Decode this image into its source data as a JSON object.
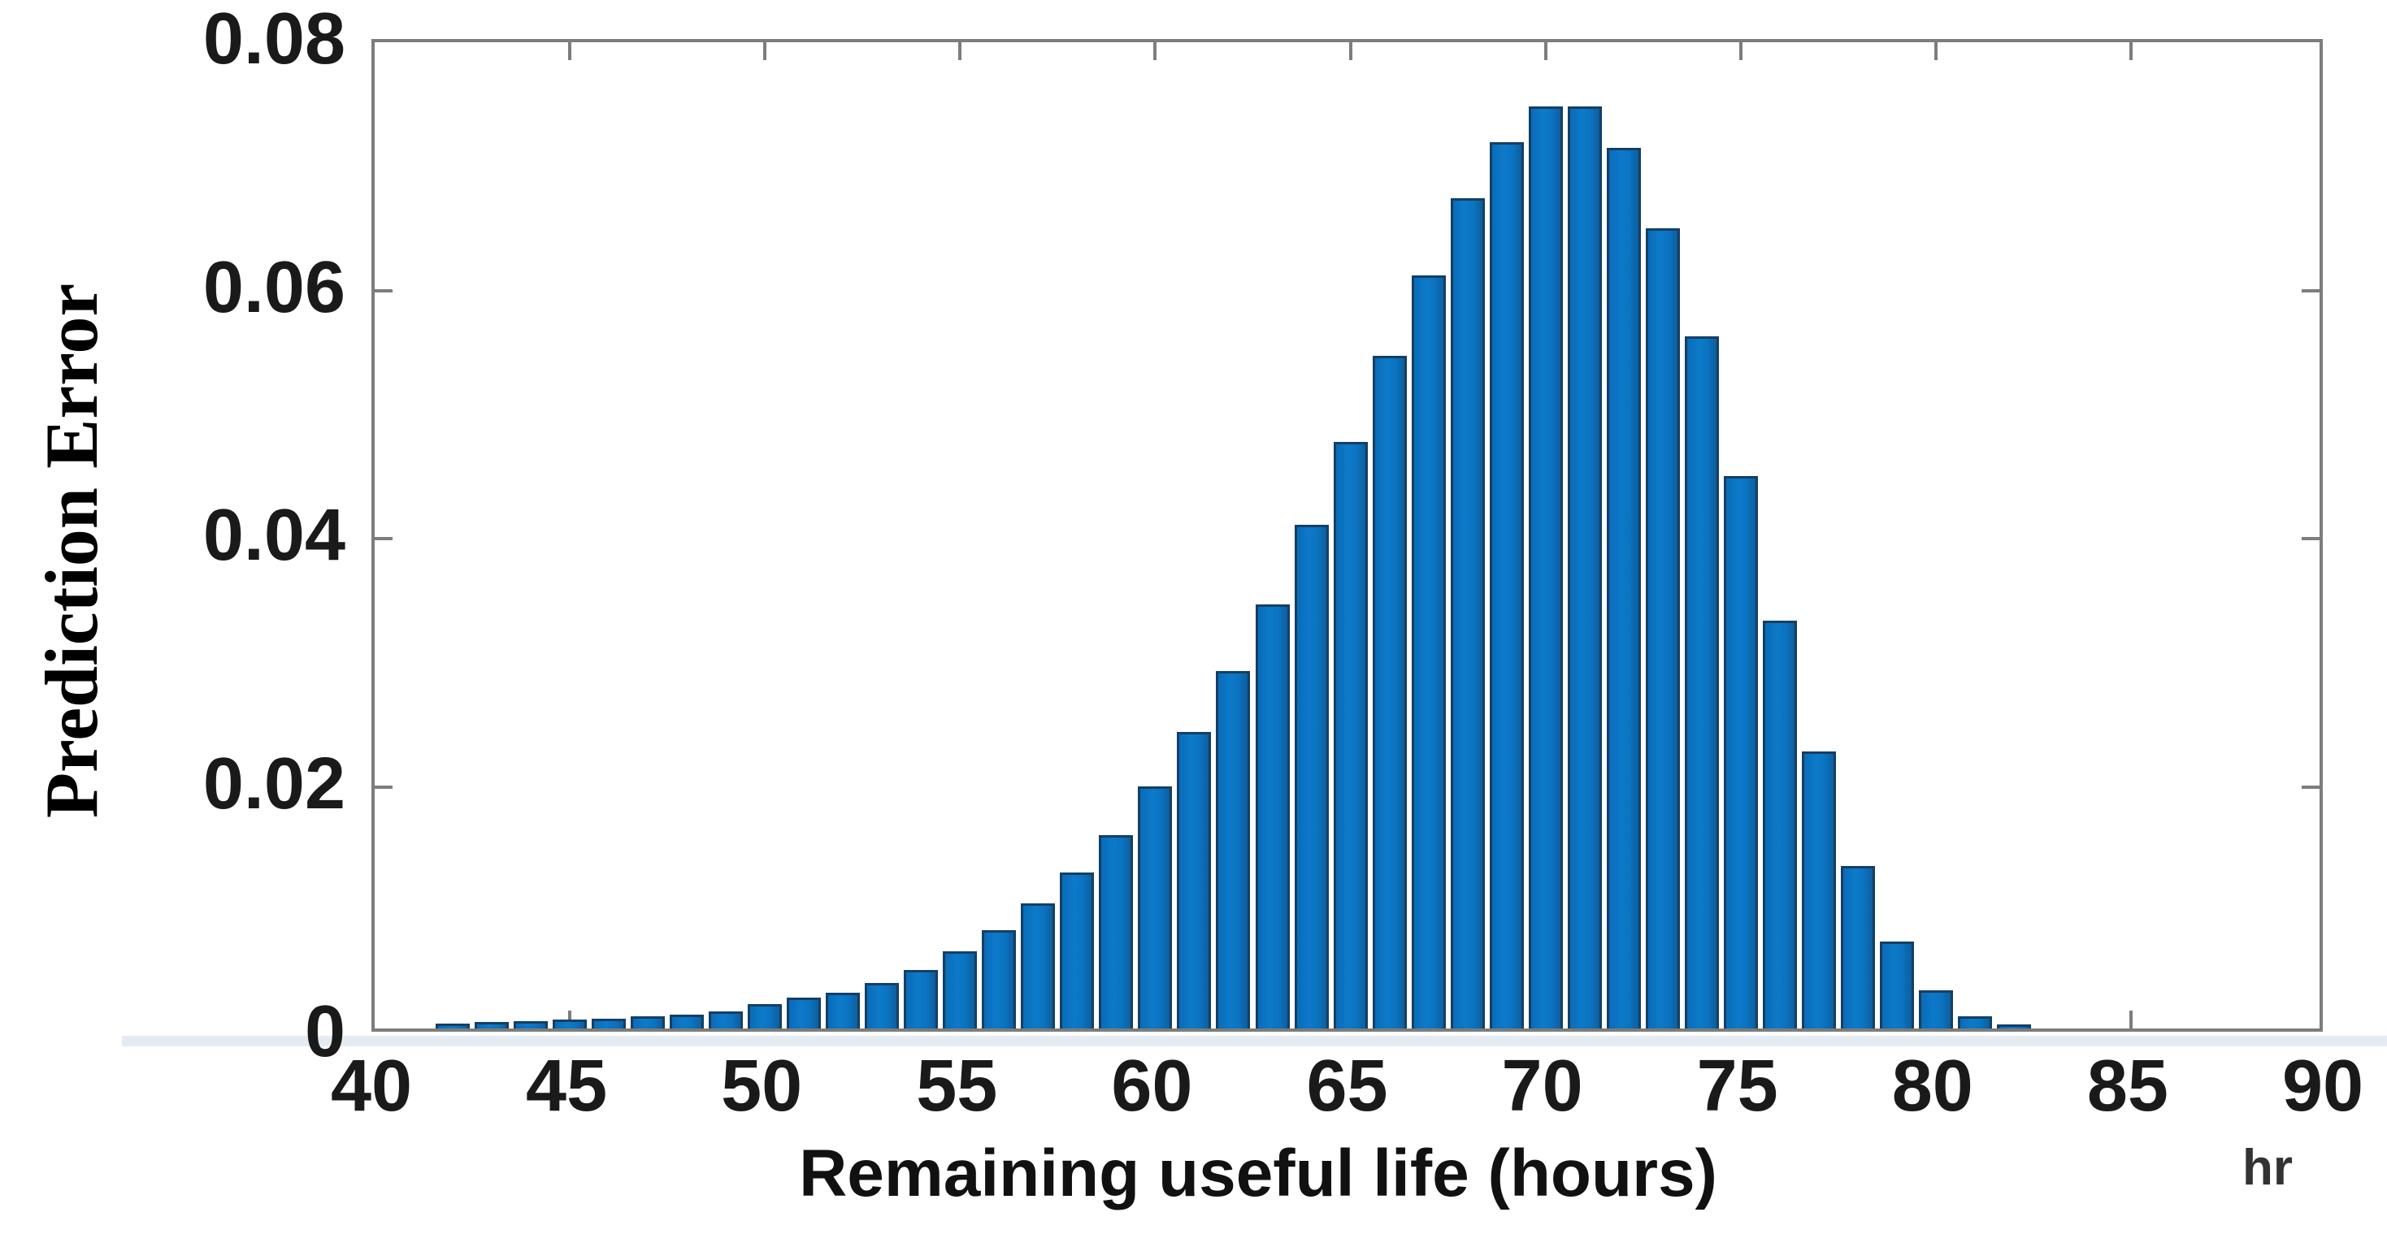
{
  "figure": {
    "colors": {
      "bar_fill": "#0b73c2",
      "bar_edge": "#143f66",
      "axis_box": "#7d7d7d",
      "tick_label": "#1a1a1a",
      "background": "#ffffff"
    }
  },
  "chart_data": {
    "type": "bar",
    "title": "",
    "xlabel": "Remaining useful life (hours)",
    "ylabel": "Prediction Error",
    "x_unit_label": "hr",
    "xlim": [
      40,
      90
    ],
    "ylim": [
      0,
      0.08
    ],
    "x_ticks": [
      40,
      45,
      50,
      55,
      60,
      65,
      70,
      75,
      80,
      85,
      90
    ],
    "y_ticks": [
      0,
      0.02,
      0.04,
      0.06,
      0.08
    ],
    "y_tick_labels": [
      "0",
      "0.02",
      "0.04",
      "0.06",
      "0.08"
    ],
    "grid": false,
    "legend": null,
    "bin_width": 1,
    "x": [
      42,
      43,
      44,
      45,
      46,
      47,
      48,
      49,
      50,
      51,
      52,
      53,
      54,
      55,
      56,
      57,
      58,
      59,
      60,
      61,
      62,
      63,
      64,
      65,
      66,
      67,
      68,
      69,
      70,
      71,
      72,
      73,
      74,
      75,
      76,
      77,
      78,
      79,
      80,
      81,
      82
    ],
    "values": [
      0.0004,
      0.0005,
      0.0006,
      0.0007,
      0.0008,
      0.001,
      0.0011,
      0.0014,
      0.002,
      0.0025,
      0.0029,
      0.0037,
      0.0047,
      0.0062,
      0.0079,
      0.0101,
      0.0126,
      0.0156,
      0.0195,
      0.0239,
      0.0288,
      0.0342,
      0.0406,
      0.0473,
      0.0542,
      0.0607,
      0.0669,
      0.0714,
      0.0743,
      0.0743,
      0.071,
      0.0645,
      0.0558,
      0.0445,
      0.0329,
      0.0223,
      0.0131,
      0.007,
      0.0031,
      0.001,
      0.0003
    ]
  }
}
